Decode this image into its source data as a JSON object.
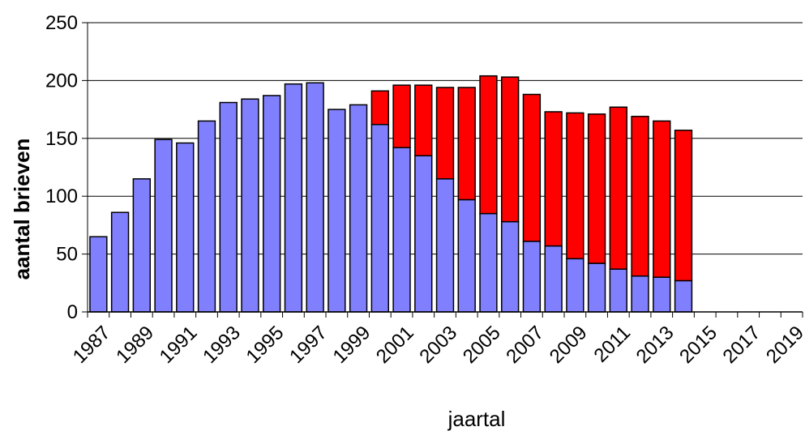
{
  "chart_data": {
    "type": "bar",
    "stacked": true,
    "xlabel": "jaartal",
    "ylabel": "aantal brieven",
    "ylim": [
      0,
      250
    ],
    "yticks": [
      0,
      50,
      100,
      150,
      200,
      250
    ],
    "grid": "horizontal",
    "legend": "none",
    "categories": [
      1987,
      1988,
      1989,
      1990,
      1991,
      1992,
      1993,
      1994,
      1995,
      1996,
      1997,
      1998,
      1999,
      2000,
      2001,
      2002,
      2003,
      2004,
      2005,
      2006,
      2007,
      2008,
      2009,
      2010,
      2011,
      2012,
      2013,
      2014,
      2015,
      2016,
      2017,
      2018,
      2019
    ],
    "x_tick_labels": [
      "1987",
      "1989",
      "1991",
      "1993",
      "1995",
      "1997",
      "1999",
      "2001",
      "2003",
      "2005",
      "2007",
      "2009",
      "2011",
      "2013",
      "2015",
      "2017",
      "2019"
    ],
    "series": [
      {
        "color": "#8080ff",
        "values": [
          65,
          86,
          115,
          149,
          146,
          165,
          181,
          184,
          187,
          197,
          198,
          175,
          179,
          162,
          142,
          135,
          115,
          97,
          85,
          78,
          61,
          57,
          46,
          42,
          37,
          31,
          30,
          27,
          null,
          null,
          null,
          null,
          null
        ]
      },
      {
        "color": "#ff0000",
        "values": [
          0,
          0,
          0,
          0,
          0,
          0,
          0,
          0,
          0,
          0,
          0,
          0,
          0,
          29,
          54,
          61,
          79,
          97,
          119,
          125,
          127,
          116,
          126,
          129,
          140,
          138,
          135,
          130,
          null,
          null,
          null,
          null,
          null
        ]
      }
    ]
  }
}
